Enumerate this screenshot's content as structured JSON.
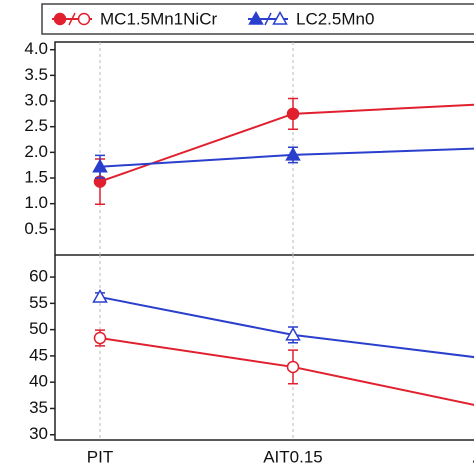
{
  "chart_data": [
    {
      "type": "line",
      "categories": [
        "PIT",
        "AIT0.15",
        "AIT"
      ],
      "ylim": [
        0.0,
        4.15
      ],
      "yticks": [
        {
          "value": 0.5,
          "label": "0.5"
        },
        {
          "value": 1.0,
          "label": "1.0"
        },
        {
          "value": 1.5,
          "label": "1.5"
        },
        {
          "value": 2.0,
          "label": "2.0"
        },
        {
          "value": 2.5,
          "label": "2.5"
        },
        {
          "value": 3.0,
          "label": "3.0"
        },
        {
          "value": 3.5,
          "label": "3.5"
        },
        {
          "value": 4.0,
          "label": "4.0"
        }
      ],
      "series": [
        {
          "name": "MC1.5Mn1NiCr",
          "color": "#e0202e",
          "marker": "filled-circle",
          "values": [
            1.43,
            2.75,
            2.94
          ],
          "errors": [
            0.44,
            0.3,
            null
          ]
        },
        {
          "name": "LC2.5Mn0",
          "color": "#2a3fcc",
          "marker": "filled-triangle",
          "values": [
            1.72,
            1.95,
            2.08
          ],
          "errors": [
            0.22,
            0.15,
            null
          ]
        }
      ]
    },
    {
      "type": "line",
      "categories": [
        "PIT",
        "AIT0.15",
        "AIT"
      ],
      "ylim": [
        29,
        64.2
      ],
      "yticks": [
        30,
        35,
        40,
        45,
        50,
        55,
        60
      ],
      "series": [
        {
          "color": "#e0202e",
          "marker": "open-circle",
          "values": [
            48.4,
            42.9,
            35.2
          ],
          "errors": [
            1.5,
            3.2,
            null
          ]
        },
        {
          "color": "#2a3fcc",
          "marker": "open-triangle",
          "values": [
            56.2,
            49,
            44.5
          ],
          "errors": [
            0.8,
            1.5,
            null
          ]
        }
      ]
    }
  ]
}
